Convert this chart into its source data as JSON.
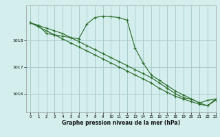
{
  "title": "Graphe pression niveau de la mer (hPa)",
  "background_color": "#d4eeee",
  "grid_color": "#aacccc",
  "line_color": "#2d6e2d",
  "xlim": [
    -0.5,
    23
  ],
  "ylim": [
    1015.3,
    1019.3
  ],
  "yticks": [
    1016,
    1017,
    1018
  ],
  "xticks": [
    0,
    1,
    2,
    3,
    4,
    5,
    6,
    7,
    8,
    9,
    10,
    11,
    12,
    13,
    14,
    15,
    16,
    17,
    18,
    19,
    20,
    21,
    22,
    23
  ],
  "series1": {
    "x": [
      0,
      1,
      2,
      3,
      4,
      5,
      6,
      7,
      8,
      9,
      10,
      11,
      12,
      13,
      14,
      15,
      16,
      17,
      18,
      19,
      20,
      21,
      22,
      23
    ],
    "y": [
      1018.65,
      1018.55,
      1018.25,
      1018.2,
      1018.15,
      1018.1,
      1018.05,
      1018.6,
      1018.85,
      1018.9,
      1018.88,
      1018.85,
      1018.75,
      1017.7,
      1017.15,
      1016.7,
      1016.5,
      1016.3,
      1016.1,
      1015.95,
      1015.8,
      1015.65,
      1015.75,
      1015.8
    ]
  },
  "series2": {
    "x": [
      0,
      1,
      2,
      3,
      4,
      5,
      6,
      7,
      8,
      9,
      10,
      11,
      12,
      13,
      14,
      15,
      16,
      17,
      18,
      19,
      20,
      21,
      22,
      23
    ],
    "y": [
      1018.65,
      1018.5,
      1018.35,
      1018.2,
      1018.05,
      1017.9,
      1017.75,
      1017.6,
      1017.45,
      1017.3,
      1017.15,
      1017.0,
      1016.85,
      1016.7,
      1016.55,
      1016.4,
      1016.2,
      1016.05,
      1015.9,
      1015.8,
      1015.7,
      1015.6,
      1015.55,
      1015.75
    ]
  },
  "series3": {
    "x": [
      0,
      1,
      2,
      3,
      4,
      5,
      6,
      7,
      8,
      9,
      10,
      11,
      12,
      13,
      14,
      15,
      16,
      17,
      18,
      19,
      20,
      21,
      22,
      23
    ],
    "y": [
      1018.65,
      1018.55,
      1018.45,
      1018.35,
      1018.25,
      1018.1,
      1017.95,
      1017.8,
      1017.65,
      1017.5,
      1017.35,
      1017.2,
      1017.05,
      1016.9,
      1016.75,
      1016.6,
      1016.4,
      1016.2,
      1016.0,
      1015.85,
      1015.8,
      1015.65,
      1015.55,
      1015.8
    ]
  }
}
